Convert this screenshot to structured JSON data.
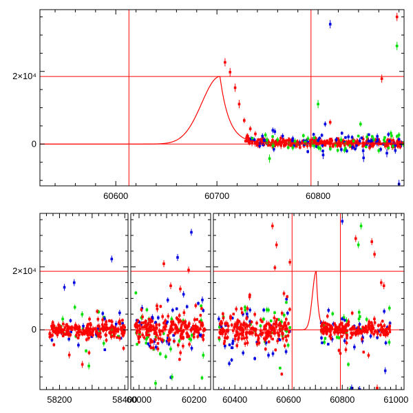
{
  "colors": {
    "red": "#ff0000",
    "green": "#00e000",
    "blue": "#0000e0",
    "axis": "#000000"
  },
  "chart_data": [
    {
      "type": "scatter",
      "title": "",
      "xlabel": "",
      "ylabel": "",
      "xlim": [
        60525,
        60885
      ],
      "ylim": [
        -11500,
        37000
      ],
      "x_ticks": [
        {
          "value": 60600,
          "label": "60600"
        },
        {
          "value": 60700,
          "label": "60700"
        },
        {
          "value": 60800,
          "label": "60800"
        }
      ],
      "y_ticks": [
        {
          "value": 0,
          "label": "0"
        },
        {
          "value": 18600,
          "label": "2×10⁴"
        }
      ],
      "hlines": [
        0,
        18600
      ],
      "vlines": [
        60613,
        60793
      ],
      "model_curve": {
        "peak_x": 60703,
        "peak_y": 18600,
        "rise_sigma": 18,
        "decay_tau": 9,
        "tail_level": 300
      },
      "series": [
        {
          "name": "red",
          "color": "#ff0000",
          "points": [
            [
              60708,
              22500
            ],
            [
              60713,
              19800
            ],
            [
              60718,
              15500
            ],
            [
              60722,
              11000
            ],
            [
              60727,
              6500
            ],
            [
              60733,
              4200
            ],
            [
              60738,
              2800
            ],
            [
              60745,
              1800
            ],
            [
              60755,
              1000
            ],
            [
              60765,
              700
            ],
            [
              60780,
              500
            ],
            [
              60800,
              300
            ],
            [
              60820,
              200
            ],
            [
              60840,
              150
            ],
            [
              60860,
              100
            ],
            [
              60880,
              100
            ],
            [
              60812,
              6000
            ],
            [
              60851,
              -1000
            ],
            [
              60878,
              35000
            ],
            [
              60863,
              18000
            ]
          ]
        },
        {
          "name": "green",
          "color": "#00e000",
          "points": [
            [
              60748,
              2500
            ],
            [
              60752,
              -4000
            ],
            [
              60760,
              1200
            ],
            [
              60775,
              -1000
            ],
            [
              60790,
              1500
            ],
            [
              60800,
              11000
            ],
            [
              60827,
              -1200
            ],
            [
              60835,
              800
            ],
            [
              60842,
              5500
            ],
            [
              60855,
              1300
            ],
            [
              60860,
              -1800
            ],
            [
              60866,
              500
            ],
            [
              60872,
              3000
            ],
            [
              60874,
              -600
            ],
            [
              60880,
              2500
            ],
            [
              60878,
              27000
            ]
          ]
        },
        {
          "name": "blue",
          "color": "#0000e0",
          "points": [
            [
              60745,
              2200
            ],
            [
              60765,
              2200
            ],
            [
              60775,
              1500
            ],
            [
              60790,
              500
            ],
            [
              60800,
              1000
            ],
            [
              60805,
              -3000
            ],
            [
              60807,
              5500
            ],
            [
              60812,
              33000
            ],
            [
              60818,
              1200
            ],
            [
              60823,
              -1500
            ],
            [
              60830,
              2000
            ],
            [
              60845,
              -3800
            ],
            [
              60852,
              800
            ],
            [
              60868,
              -2500
            ],
            [
              60880,
              -11000
            ]
          ]
        }
      ]
    },
    {
      "type": "scatter",
      "title": "",
      "xlabel": "",
      "ylabel": "",
      "panels": [
        {
          "xlim": [
            58140,
            58410
          ]
        },
        {
          "xlim": [
            59970,
            60260
          ]
        },
        {
          "xlim": [
            60320,
            61030
          ]
        }
      ],
      "ylim": [
        -19000,
        37000
      ],
      "x_ticks": [
        {
          "panel": 0,
          "value": 58200,
          "label": "58200"
        },
        {
          "panel": 0,
          "value": 58400,
          "label": "58400"
        },
        {
          "panel": 1,
          "value": 60000,
          "label": "60000"
        },
        {
          "panel": 1,
          "value": 60200,
          "label": "60200"
        },
        {
          "panel": 2,
          "value": 60400,
          "label": "60400"
        },
        {
          "panel": 2,
          "value": 60600,
          "label": "60600"
        },
        {
          "panel": 2,
          "value": 60800,
          "label": "60800"
        },
        {
          "panel": 2,
          "value": 61000,
          "label": "61000"
        }
      ],
      "y_ticks": [
        {
          "value": 0,
          "label": "0"
        },
        {
          "value": 18600,
          "label": "2×10⁴"
        }
      ],
      "hlines": [
        0,
        18600
      ],
      "vlines": [
        {
          "panel": 2,
          "value": 60613
        },
        {
          "panel": 2,
          "value": 60793
        }
      ],
      "model_curve": {
        "panel": 2,
        "peak_x": 60703,
        "peak_y": 18600,
        "rise_sigma": 14,
        "decay_tau": 8,
        "tail_level": 300
      },
      "noise_clusters": [
        {
          "panel": 0,
          "range": [
            58170,
            58400
          ],
          "sd": 3500,
          "counts": {
            "red": 200,
            "green": 18,
            "blue": 20
          }
        },
        {
          "panel": 1,
          "range": [
            59985,
            60240
          ],
          "sd": 5500,
          "counts": {
            "red": 200,
            "green": 30,
            "blue": 35
          }
        },
        {
          "panel": 2,
          "range": [
            60340,
            60605
          ],
          "sd": 5800,
          "counts": {
            "red": 200,
            "green": 30,
            "blue": 38
          }
        },
        {
          "panel": 2,
          "range": [
            60720,
            60980
          ],
          "sd": 3500,
          "counts": {
            "red": 180,
            "green": 20,
            "blue": 28
          }
        }
      ],
      "series": [
        {
          "name": "red",
          "color": "#ff0000",
          "points": [
            [
              2,
              60540,
              33000
            ],
            [
              2,
              60605,
              21500
            ],
            [
              2,
              60555,
              27000
            ],
            [
              2,
              60850,
              29000
            ],
            [
              2,
              60910,
              28000
            ],
            [
              2,
              60920,
              24000
            ],
            [
              2,
              60945,
              15000
            ],
            [
              2,
              60955,
              14000
            ],
            [
              2,
              60930,
              -18500
            ],
            [
              1,
              60090,
              21000
            ],
            [
              1,
              60115,
              14000
            ],
            [
              1,
              60150,
              13000
            ],
            [
              1,
              60180,
              19000
            ],
            [
              0,
              58230,
              -8000
            ],
            [
              0,
              58270,
              -11000
            ]
          ]
        },
        {
          "name": "green",
          "color": "#00e000",
          "points": [
            [
              2,
              60870,
              33000
            ],
            [
              2,
              60860,
              27000
            ],
            [
              2,
              60830,
              -19000
            ],
            [
              1,
              60060,
              -17000
            ],
            [
              1,
              60120,
              -15000
            ],
            [
              0,
              58290,
              -11500
            ]
          ]
        },
        {
          "name": "blue",
          "color": "#0000e0",
          "points": [
            [
              2,
              60800,
              34500
            ],
            [
              2,
              60835,
              -18500
            ],
            [
              2,
              60865,
              -19000
            ],
            [
              2,
              60960,
              -13000
            ],
            [
              1,
              60190,
              31000
            ],
            [
              1,
              60140,
              23000
            ],
            [
              1,
              60230,
              9500
            ],
            [
              0,
              58360,
              22500
            ],
            [
              0,
              58245,
              15000
            ],
            [
              0,
              58215,
              13500
            ]
          ]
        }
      ]
    }
  ]
}
